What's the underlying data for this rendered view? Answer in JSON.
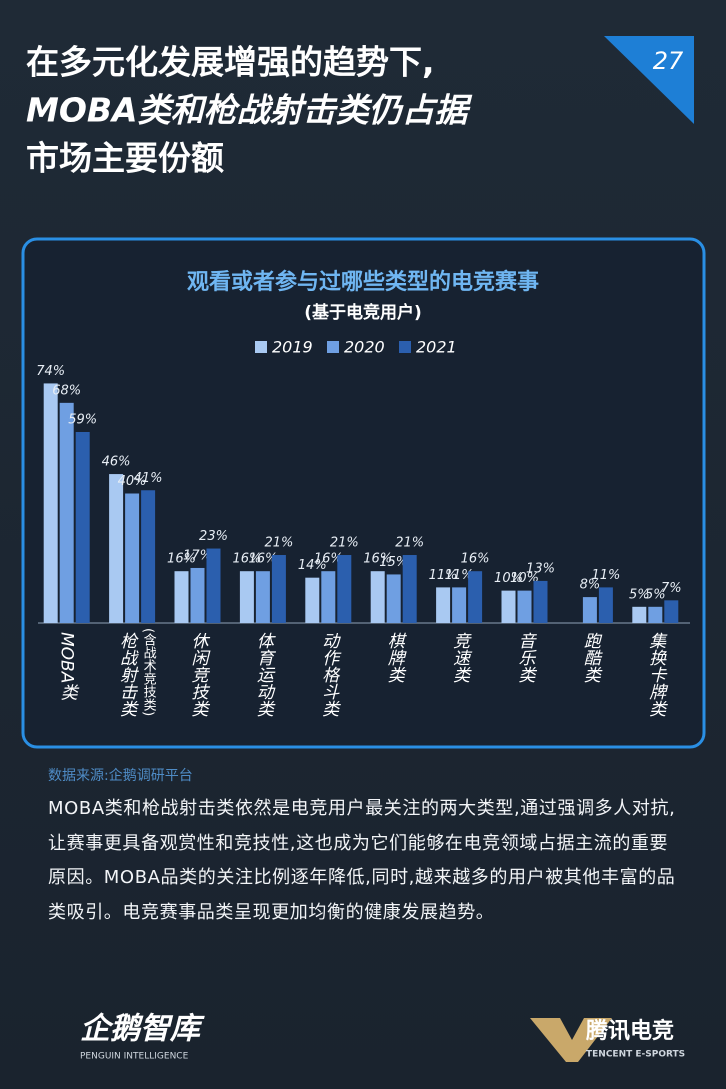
{
  "header": {
    "title_lines": [
      "在多元化发展增强的趋势下,",
      "MOBA类和枪战射击类仍占据",
      "市场主要份额"
    ],
    "page_number": "27"
  },
  "chart_data": {
    "type": "bar",
    "title": "观看或者参与过哪些类型的电竞赛事",
    "subtitle": "(基于电竞用户)",
    "categories": [
      "MOBA类",
      "枪战射击类",
      "休闲竞技类",
      "体育运动类",
      "动作格斗类",
      "棋牌类",
      "竞速类",
      "音乐类",
      "跑酷类",
      "集换卡牌类"
    ],
    "category_notes": [
      null,
      "(含战术竞技类)",
      null,
      null,
      null,
      null,
      null,
      null,
      null,
      null
    ],
    "series": [
      {
        "name": "2019",
        "color": "#a9c9f2",
        "values": [
          74,
          46,
          16,
          16,
          14,
          16,
          11,
          10,
          null,
          5
        ],
        "value_labels": [
          "74%",
          "46%",
          "16%",
          "16%",
          "14%",
          "16%",
          "11%",
          "10%",
          null,
          "5%"
        ]
      },
      {
        "name": "2020",
        "color": "#6f9fe2",
        "values": [
          68,
          40,
          17,
          16,
          16,
          15,
          11,
          10,
          8,
          5
        ],
        "value_labels": [
          "68%",
          "40%",
          "17%",
          "16%",
          "16%",
          "15%",
          "11%",
          "10%",
          "8%",
          "5%"
        ]
      },
      {
        "name": "2021",
        "color": "#2b5fae",
        "values": [
          59,
          41,
          23,
          21,
          21,
          21,
          16,
          13,
          11,
          7
        ],
        "value_labels": [
          "59%",
          "41%",
          "23%",
          "21%",
          "21%",
          "21%",
          "16%",
          "13%",
          "11%",
          "7%"
        ]
      }
    ],
    "ylim": [
      0,
      80
    ],
    "legend": "top"
  },
  "source": "数据来源:企鹅调研平台",
  "paragraph": "MOBA类和枪战射击类依然是电竞用户最关注的两大类型,通过强调多人对抗,让赛事更具备观赏性和竞技性,这也成为它们能够在电竞领域占据主流的重要原因。MOBA品类的关注比例逐年降低,同时,越来越多的用户被其他丰富的品类吸引。电竞赛事品类呈现更加均衡的健康发展趋势。",
  "footer": {
    "left_logo": "企鹅智库",
    "left_sub": "PENGUIN INTELLIGENCE",
    "right_logo": "腾讯电竞",
    "right_sub": "TENCENT E-SPORTS"
  }
}
